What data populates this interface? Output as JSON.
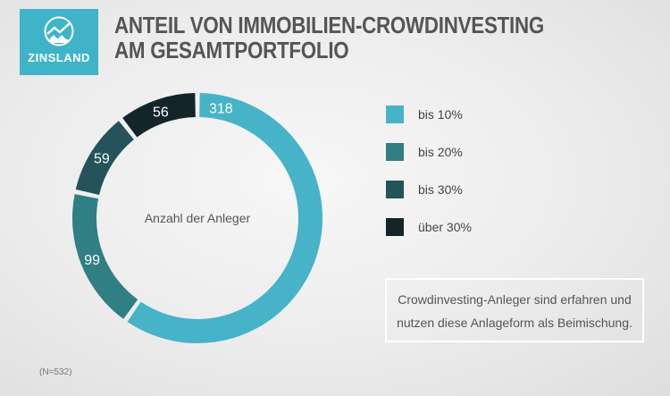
{
  "brand": {
    "name": "ZINSLAND",
    "color": "#3fb3c7"
  },
  "title": {
    "line1": "ANTEIL VON IMMOBILIEN-CROWDINVESTING",
    "line2": "AM GESAMTPORTFOLIO"
  },
  "chart_data": {
    "type": "donut",
    "center_label": "Anzahl der Anleger",
    "categories": [
      "bis 10%",
      "bis 20%",
      "bis 30%",
      "über 30%"
    ],
    "values": [
      318,
      99,
      59,
      56
    ],
    "colors": [
      "#46b3c8",
      "#2f7f85",
      "#24535a",
      "#13252a"
    ],
    "legend_position": "right"
  },
  "note": {
    "line1": "Crowdinvesting-Anleger sind erfahren und",
    "line2": "nutzen diese Anlageform als Beimischung."
  },
  "sample": "(N=532)"
}
